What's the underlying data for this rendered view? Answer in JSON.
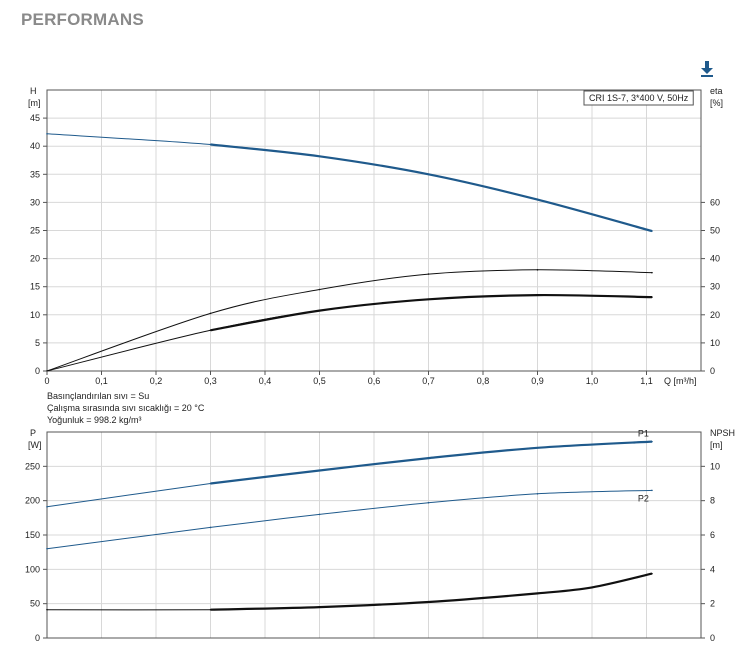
{
  "page": {
    "title": "PERFORMANS",
    "download_icon": "download-icon",
    "accent": "#1f5a8c"
  },
  "chart_data": [
    {
      "type": "line",
      "legend": "CRI 1S-7, 3*400 V, 50Hz",
      "xlabel": "Q [m³/h]",
      "ylabel_left": [
        "H",
        "[m]"
      ],
      "ylabel_right": [
        "eta",
        "[%]"
      ],
      "xlim": [
        0,
        1.2
      ],
      "ylim": [
        0,
        50
      ],
      "ylim_right": [
        0,
        100
      ],
      "grid": true,
      "x_ticks": [
        "0",
        "0,1",
        "0,2",
        "0,3",
        "0,4",
        "0,5",
        "0,6",
        "0,7",
        "0,8",
        "0,9",
        "1,0",
        "1,1"
      ],
      "y_ticks": [
        "0",
        "5",
        "10",
        "15",
        "20",
        "25",
        "30",
        "35",
        "40",
        "45"
      ],
      "y_ticks_right": [
        "0",
        "10",
        "20",
        "30",
        "40",
        "50",
        "60"
      ],
      "notes": [
        "Basınçlandırılan sıvı = Su",
        "Çalışma sırasında sıvı sıcaklığı = 20 °C",
        "Yoğunluk = 998.2 kg/m³"
      ],
      "series": [
        {
          "axis": "left",
          "color": "#1f5a8c",
          "x": [
            0,
            0.3,
            0.5,
            0.7,
            0.9,
            1.11
          ],
          "y": [
            42.2,
            40.3,
            38.2,
            35.0,
            30.5,
            24.9
          ],
          "x_bold_from": 0.3
        },
        {
          "axis": "right",
          "color": "#111111",
          "x": [
            0,
            0.3,
            0.5,
            0.7,
            0.9,
            1.11
          ],
          "y": [
            0,
            20.5,
            29.0,
            34.5,
            36.0,
            35.0
          ],
          "x_bold_from": 99
        },
        {
          "axis": "right",
          "color": "#111111",
          "x": [
            0,
            0.3,
            0.5,
            0.7,
            0.9,
            1.11
          ],
          "y": [
            0,
            14.5,
            21.5,
            25.5,
            27.0,
            26.3
          ],
          "x_bold_from": 0.3
        }
      ]
    },
    {
      "type": "line",
      "ylabel_left": [
        "P",
        "[W]"
      ],
      "ylabel_right": [
        "NPSH",
        "[m]"
      ],
      "xlim": [
        0,
        1.2
      ],
      "ylim": [
        0,
        300
      ],
      "ylim_right": [
        0,
        12
      ],
      "grid": true,
      "y_ticks": [
        "0",
        "50",
        "100",
        "150",
        "200",
        "250"
      ],
      "y_ticks_right": [
        "0",
        "2",
        "4",
        "6",
        "8",
        "10"
      ],
      "series": [
        {
          "name": "P1",
          "axis": "left",
          "color": "#1f5a8c",
          "x": [
            0,
            0.3,
            0.5,
            0.7,
            0.9,
            1.11
          ],
          "y": [
            191,
            225,
            244,
            262,
            277,
            286
          ],
          "x_bold_from": 0.3
        },
        {
          "name": "P2",
          "axis": "left",
          "color": "#1f5a8c",
          "x": [
            0,
            0.3,
            0.5,
            0.7,
            0.9,
            1.11
          ],
          "y": [
            130,
            161,
            180,
            197,
            210,
            215
          ],
          "x_bold_from": 99
        },
        {
          "axis": "right",
          "color": "#111111",
          "x": [
            0,
            0.3,
            0.5,
            0.7,
            0.9,
            1.0,
            1.11
          ],
          "y": [
            1.65,
            1.65,
            1.8,
            2.1,
            2.6,
            2.95,
            3.75
          ],
          "x_bold_from": 0.3
        }
      ]
    }
  ]
}
